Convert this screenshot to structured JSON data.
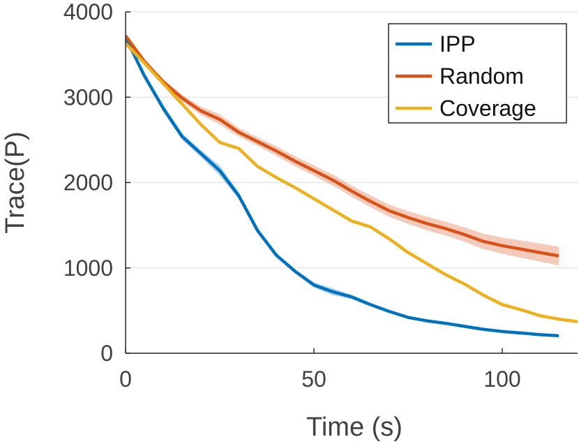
{
  "chart_data": {
    "type": "line",
    "title": "",
    "xlabel": "Time (s)",
    "ylabel": "Trace(P)",
    "xlim": [
      0,
      120
    ],
    "ylim": [
      0,
      4000
    ],
    "x_ticks": [
      0,
      50,
      100
    ],
    "x_tick_labels": [
      "0",
      "50",
      "100"
    ],
    "y_ticks": [
      0,
      1000,
      2000,
      3000,
      4000
    ],
    "y_tick_labels": [
      "0",
      "1000",
      "2000",
      "3000",
      "4000"
    ],
    "grid": "y-major",
    "legend_position": "top-right",
    "series": [
      {
        "name": "IPP",
        "color": "#0072bd",
        "band_color": "#0072bd",
        "x": [
          0,
          5,
          10,
          15,
          20,
          25,
          30,
          35,
          40,
          45,
          50,
          55,
          60,
          65,
          70,
          75,
          80,
          85,
          90,
          95,
          100,
          105,
          110,
          115
        ],
        "values": [
          3700,
          3250,
          2870,
          2540,
          2340,
          2140,
          1850,
          1440,
          1150,
          960,
          800,
          720,
          660,
          570,
          490,
          420,
          380,
          350,
          315,
          280,
          255,
          237,
          218,
          205
        ],
        "band": [
          0,
          30,
          40,
          40,
          40,
          60,
          40,
          30,
          25,
          20,
          30,
          40,
          25,
          20,
          15,
          12,
          10,
          10,
          8,
          8,
          8,
          8,
          8,
          8
        ]
      },
      {
        "name": "Random",
        "color": "#d95319",
        "band_color": "#d95319",
        "x": [
          0,
          5,
          10,
          15,
          20,
          25,
          30,
          35,
          40,
          45,
          50,
          55,
          60,
          65,
          70,
          75,
          80,
          85,
          90,
          95,
          100,
          105,
          110,
          115
        ],
        "values": [
          3720,
          3420,
          3180,
          2990,
          2840,
          2740,
          2590,
          2480,
          2370,
          2250,
          2140,
          2030,
          1900,
          1780,
          1670,
          1590,
          1520,
          1460,
          1390,
          1310,
          1260,
          1220,
          1180,
          1140
        ],
        "band": [
          10,
          20,
          30,
          40,
          50,
          60,
          50,
          50,
          55,
          60,
          60,
          65,
          65,
          70,
          70,
          75,
          80,
          80,
          85,
          90,
          95,
          100,
          105,
          110
        ]
      },
      {
        "name": "Coverage",
        "color": "#edb120",
        "band_color": "#edb120",
        "x": [
          0,
          5,
          10,
          15,
          20,
          25,
          30,
          35,
          40,
          45,
          50,
          55,
          60,
          65,
          70,
          75,
          80,
          85,
          90,
          95,
          100,
          105,
          110,
          115,
          120
        ],
        "values": [
          3630,
          3400,
          3160,
          2920,
          2680,
          2470,
          2400,
          2190,
          2060,
          1940,
          1810,
          1680,
          1550,
          1480,
          1340,
          1180,
          1050,
          920,
          810,
          680,
          570,
          510,
          440,
          400,
          370
        ],
        "band": [
          10,
          15,
          15,
          15,
          15,
          15,
          15,
          15,
          15,
          15,
          15,
          15,
          15,
          15,
          15,
          15,
          15,
          15,
          15,
          15,
          15,
          15,
          15,
          15,
          15
        ]
      }
    ]
  }
}
